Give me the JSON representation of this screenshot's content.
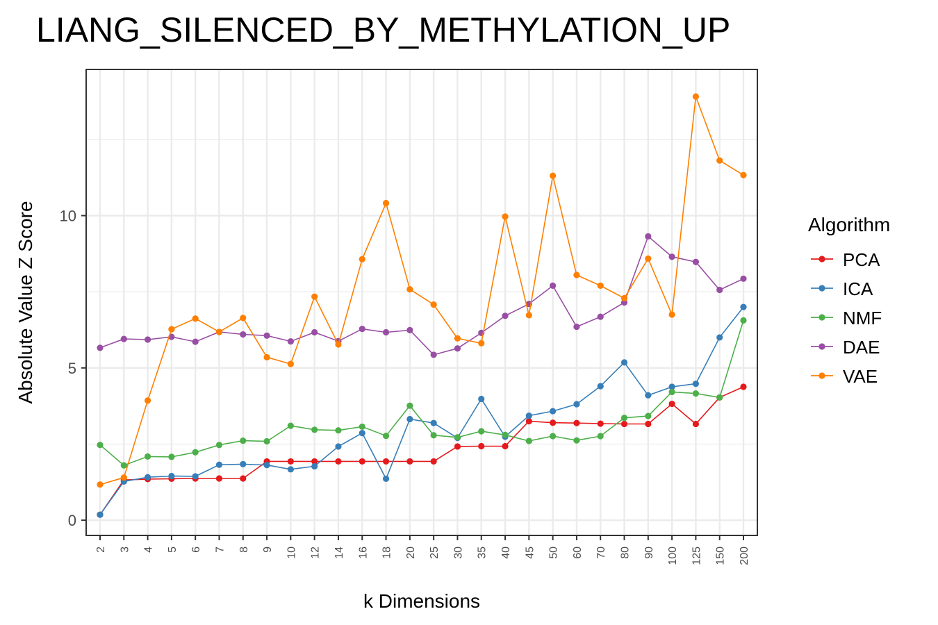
{
  "chart_data": {
    "type": "line",
    "title": "LIANG_SILENCED_BY_METHYLATION_UP",
    "xlabel": "k Dimensions",
    "ylabel": "Absolute Value Z Score",
    "categories": [
      "2",
      "3",
      "4",
      "5",
      "6",
      "7",
      "8",
      "9",
      "10",
      "12",
      "14",
      "16",
      "18",
      "20",
      "25",
      "30",
      "35",
      "40",
      "45",
      "50",
      "60",
      "70",
      "80",
      "90",
      "100",
      "125",
      "150",
      "200"
    ],
    "y_ticks": [
      0,
      5,
      10
    ],
    "ylim": [
      -0.5,
      14.8
    ],
    "grid": true,
    "legend": {
      "title": "Algorithm",
      "position": "right"
    },
    "series": [
      {
        "name": "PCA",
        "color": "#e41a1c",
        "values": [
          0.18,
          1.32,
          1.35,
          1.36,
          1.37,
          1.37,
          1.37,
          1.93,
          1.93,
          1.93,
          1.93,
          1.93,
          1.93,
          1.93,
          1.93,
          2.42,
          2.43,
          2.43,
          3.25,
          3.2,
          3.19,
          3.17,
          3.16,
          3.16,
          3.82,
          3.16,
          4.03,
          4.38
        ]
      },
      {
        "name": "ICA",
        "color": "#377eb8",
        "values": [
          0.18,
          1.27,
          1.41,
          1.45,
          1.44,
          1.82,
          1.84,
          1.81,
          1.67,
          1.77,
          2.42,
          2.86,
          1.36,
          3.32,
          3.19,
          2.7,
          3.98,
          2.74,
          3.43,
          3.58,
          3.81,
          4.4,
          5.18,
          4.1,
          4.38,
          4.48,
          6.0,
          7.0
        ]
      },
      {
        "name": "NMF",
        "color": "#4daf4a",
        "values": [
          2.47,
          1.8,
          2.09,
          2.08,
          2.23,
          2.47,
          2.61,
          2.59,
          3.1,
          2.97,
          2.95,
          3.07,
          2.77,
          3.76,
          2.79,
          2.72,
          2.92,
          2.8,
          2.6,
          2.76,
          2.62,
          2.76,
          3.36,
          3.42,
          4.21,
          4.16,
          4.03,
          6.56
        ]
      },
      {
        "name": "DAE",
        "color": "#984ea3",
        "values": [
          5.66,
          5.95,
          5.93,
          6.02,
          5.86,
          6.18,
          6.1,
          6.06,
          5.87,
          6.17,
          5.88,
          6.28,
          6.17,
          6.24,
          5.43,
          5.64,
          6.15,
          6.71,
          7.1,
          7.7,
          6.35,
          6.68,
          7.15,
          9.32,
          8.65,
          8.48,
          7.56,
          7.93
        ]
      },
      {
        "name": "VAE",
        "color": "#ff7f00",
        "values": [
          1.17,
          1.4,
          3.93,
          6.27,
          6.62,
          6.18,
          6.64,
          5.35,
          5.13,
          7.34,
          5.77,
          8.57,
          10.41,
          7.58,
          7.08,
          5.97,
          5.81,
          9.97,
          6.73,
          11.31,
          8.05,
          7.7,
          7.29,
          8.59,
          6.75,
          13.91,
          11.81,
          11.33
        ]
      }
    ]
  }
}
